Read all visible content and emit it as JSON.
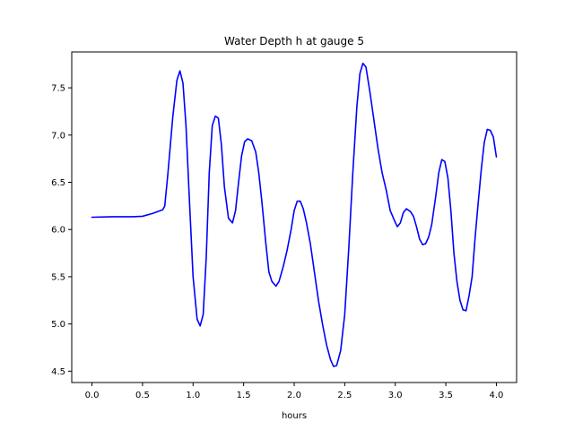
{
  "chart_data": {
    "type": "line",
    "title": "Water Depth h at gauge 5",
    "xlabel": "hours",
    "ylabel": "",
    "xlim": [
      -0.2,
      4.2
    ],
    "ylim": [
      4.38,
      7.88
    ],
    "xticks": [
      0.0,
      0.5,
      1.0,
      1.5,
      2.0,
      2.5,
      3.0,
      3.5,
      4.0
    ],
    "xtick_labels": [
      "0.0",
      "0.5",
      "1.0",
      "1.5",
      "2.0",
      "2.5",
      "3.0",
      "3.5",
      "4.0"
    ],
    "yticks": [
      4.5,
      5.0,
      5.5,
      6.0,
      6.5,
      7.0,
      7.5
    ],
    "ytick_labels": [
      "4.5",
      "5.0",
      "5.5",
      "6.0",
      "6.5",
      "7.0",
      "7.5"
    ],
    "grid": false,
    "series": [
      {
        "color": "#0000ff",
        "x": [
          0.0,
          0.2,
          0.4,
          0.5,
          0.6,
          0.7,
          0.72,
          0.75,
          0.8,
          0.84,
          0.87,
          0.9,
          0.93,
          0.96,
          1.0,
          1.04,
          1.07,
          1.1,
          1.13,
          1.16,
          1.19,
          1.22,
          1.25,
          1.28,
          1.31,
          1.35,
          1.39,
          1.42,
          1.45,
          1.48,
          1.51,
          1.54,
          1.58,
          1.62,
          1.65,
          1.68,
          1.72,
          1.75,
          1.78,
          1.82,
          1.85,
          1.89,
          1.93,
          1.97,
          2.0,
          2.03,
          2.06,
          2.09,
          2.12,
          2.16,
          2.2,
          2.24,
          2.28,
          2.32,
          2.36,
          2.39,
          2.42,
          2.46,
          2.5,
          2.54,
          2.58,
          2.62,
          2.65,
          2.68,
          2.71,
          2.75,
          2.79,
          2.83,
          2.87,
          2.91,
          2.95,
          2.99,
          3.02,
          3.05,
          3.08,
          3.11,
          3.15,
          3.18,
          3.21,
          3.24,
          3.27,
          3.3,
          3.33,
          3.36,
          3.4,
          3.43,
          3.46,
          3.49,
          3.52,
          3.55,
          3.58,
          3.61,
          3.64,
          3.67,
          3.7,
          3.73,
          3.76,
          3.79,
          3.82,
          3.85,
          3.88,
          3.91,
          3.94,
          3.97,
          4.0
        ],
        "y": [
          6.13,
          6.135,
          6.135,
          6.14,
          6.17,
          6.21,
          6.25,
          6.58,
          7.2,
          7.58,
          7.68,
          7.55,
          7.1,
          6.4,
          5.5,
          5.05,
          4.98,
          5.1,
          5.7,
          6.6,
          7.1,
          7.2,
          7.18,
          6.9,
          6.45,
          6.12,
          6.07,
          6.2,
          6.5,
          6.78,
          6.93,
          6.96,
          6.94,
          6.82,
          6.6,
          6.3,
          5.85,
          5.55,
          5.45,
          5.4,
          5.45,
          5.6,
          5.78,
          6.0,
          6.2,
          6.3,
          6.3,
          6.22,
          6.08,
          5.85,
          5.55,
          5.25,
          5.0,
          4.78,
          4.62,
          4.55,
          4.56,
          4.72,
          5.1,
          5.8,
          6.6,
          7.3,
          7.65,
          7.76,
          7.72,
          7.45,
          7.15,
          6.85,
          6.6,
          6.42,
          6.2,
          6.1,
          6.03,
          6.07,
          6.18,
          6.22,
          6.19,
          6.14,
          6.03,
          5.9,
          5.84,
          5.85,
          5.92,
          6.05,
          6.35,
          6.6,
          6.74,
          6.72,
          6.55,
          6.2,
          5.75,
          5.45,
          5.25,
          5.15,
          5.14,
          5.3,
          5.5,
          5.92,
          6.28,
          6.63,
          6.92,
          7.06,
          7.05,
          6.98,
          6.77
        ]
      }
    ]
  }
}
